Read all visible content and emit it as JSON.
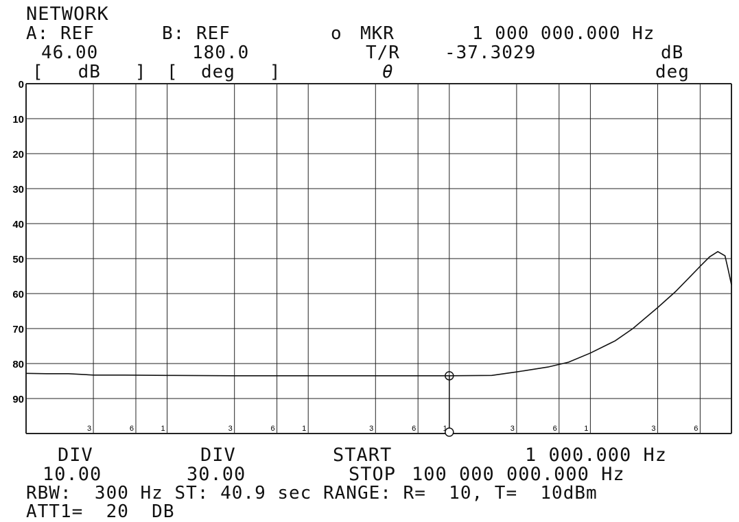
{
  "header": {
    "title": "NETWORK",
    "a_ref_label": "A: REF",
    "a_ref_value": "46.00",
    "a_unit": "[   dB   ]",
    "b_ref_label": "B: REF",
    "b_ref_value": "180.0",
    "b_unit": "[  deg   ]",
    "marker_symbol": "o",
    "marker_label": "MKR",
    "marker_freq": "1 000 000.000 Hz",
    "tr_label": "T/R",
    "tr_value": "-37.3029",
    "tr_unit": "dB",
    "theta_label": "θ",
    "theta_unit": "deg"
  },
  "footer": {
    "div_a_label": "DIV",
    "div_a_value": "10.00",
    "div_b_label": "DIV",
    "div_b_value": "30.00",
    "start_label": "START",
    "start_value": "1 000.000 Hz",
    "stop_label": "STOP",
    "stop_value": "100 000 000.000 Hz",
    "line3": "RBW:  300 Hz ST: 40.9 sec RANGE: R=  10, T=  10dBm",
    "line4": "ATT1=  20  DB"
  },
  "chart_data": {
    "type": "line",
    "x_scale": "log",
    "x_range_hz": [
      1000,
      100000000
    ],
    "y_ticks": [
      "0",
      "10",
      "20",
      "30",
      "40",
      "50",
      "60",
      "70",
      "80",
      "90"
    ],
    "y_range": [
      0,
      100
    ],
    "y_inverted": true,
    "x_minor_labels": [
      "3",
      "6",
      "1",
      "3",
      "6",
      "1",
      "3",
      "6",
      "1",
      "3",
      "6",
      "1",
      "3",
      "6"
    ],
    "grid": true,
    "marker": {
      "x_hz": 1000000,
      "y": 83.5
    },
    "series": [
      {
        "x_hz": [
          1000,
          1400,
          2000,
          3000,
          5000,
          10000,
          30000,
          100000,
          300000,
          1000000,
          2000000,
          3000000,
          5000000,
          7000000,
          10000000,
          15000000,
          20000000,
          30000000,
          40000000,
          50000000,
          60000000,
          70000000,
          80000000,
          90000000,
          95000000,
          100000000
        ],
        "y": [
          82.8,
          82.9,
          82.9,
          83.3,
          83.3,
          83.4,
          83.5,
          83.5,
          83.5,
          83.5,
          83.4,
          82.4,
          81,
          79.6,
          77,
          73.5,
          70,
          64,
          59.5,
          55.5,
          52.2,
          49.5,
          48,
          49.2,
          53.3,
          57.5
        ]
      }
    ]
  }
}
